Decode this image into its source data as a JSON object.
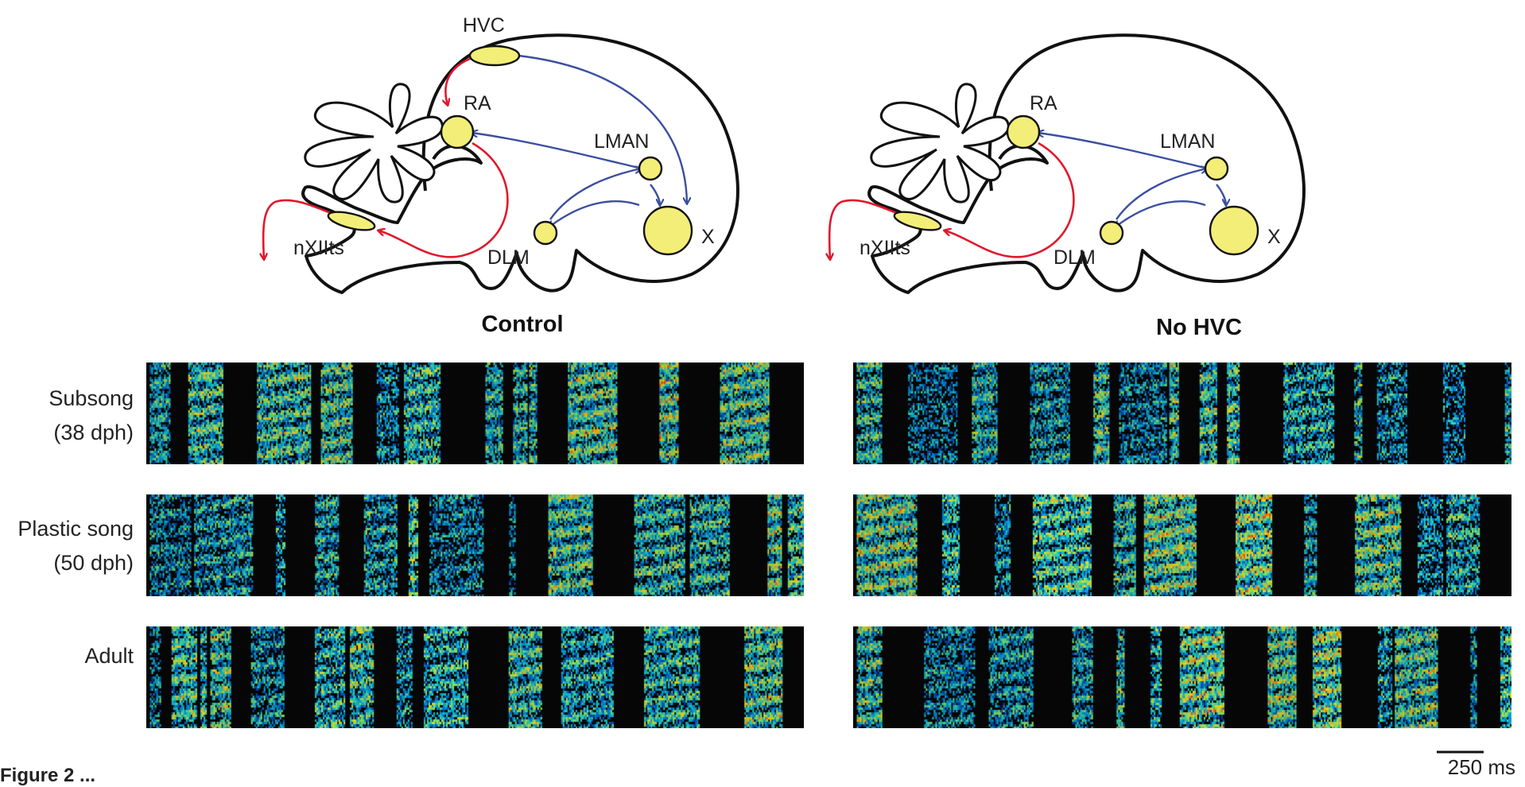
{
  "panels": [
    {
      "id": "control",
      "title": "Control",
      "nuclei": [
        "HVC",
        "RA",
        "LMAN",
        "X",
        "DLM",
        "nXIIts"
      ]
    },
    {
      "id": "no_hvc",
      "title": "No HVC",
      "nuclei": [
        "RA",
        "LMAN",
        "X",
        "DLM",
        "nXIIts"
      ]
    }
  ],
  "rows": [
    {
      "label_line1": "Subsong",
      "label_line2": "(38 dph)"
    },
    {
      "label_line1": "Plastic song",
      "label_line2": "(50 dph)"
    },
    {
      "label_line1": "Adult",
      "label_line2": ""
    }
  ],
  "scale_bar": {
    "label": "250 ms",
    "value_ms": 250
  },
  "colors": {
    "motor_pathway": "#e0182d",
    "afp_pathway": "#3b4ea0",
    "nucleus_fill": "#f3ee78",
    "outline": "#111111",
    "spectrogram_background": "#060606"
  },
  "caption_fragment": "Figure 2 ..."
}
